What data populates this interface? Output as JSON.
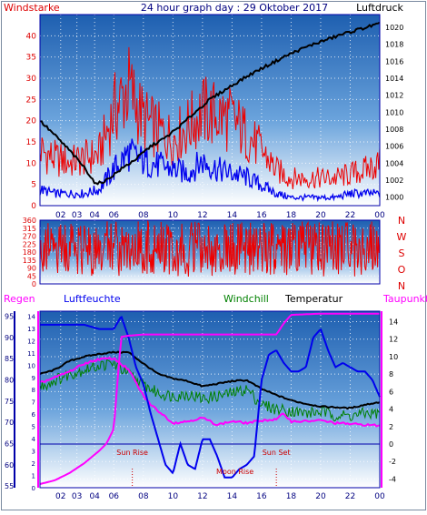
{
  "title": "24 hour graph day : 29 Oktober 2017",
  "colors": {
    "wind_avg": "#0000ee",
    "wind_gust": "#ee0000",
    "pressure": "#000000",
    "direction": "#ee0000",
    "rain": "#ff00ff",
    "humidity": "#0000ee",
    "windchill": "#008000",
    "temperature": "#000000",
    "dewpoint": "#ff00ff",
    "zero_line": "#0000aa",
    "frame": "#0000aa",
    "rain_axis": "#ff00ff",
    "sun_label": "#cc0000"
  },
  "x_ticks": [
    "02",
    "03",
    "04",
    "06",
    "08",
    "10",
    "12",
    "14",
    "16",
    "18",
    "20",
    "22",
    "00"
  ],
  "chart_data": [
    {
      "type": "line",
      "name": "wind-pressure",
      "x_range_hours": [
        1,
        24
      ],
      "left_label": "Windstarke",
      "right_label": "Luftdruck",
      "left_ylim": [
        0,
        45
      ],
      "left_ticks": [
        "0",
        "5",
        "10",
        "15",
        "20",
        "25",
        "30",
        "35",
        "40"
      ],
      "right_ylim": [
        999,
        1021.5
      ],
      "right_ticks": [
        "1000",
        "1002",
        "1004",
        "1006",
        "1008",
        "1010",
        "1012",
        "1014",
        "1016",
        "1018",
        "1020"
      ],
      "series": [
        {
          "key": "gust",
          "x": [
            1,
            2,
            3,
            4,
            5,
            6,
            7,
            8,
            9,
            10,
            11,
            12,
            13,
            14,
            15,
            16,
            17,
            18,
            19,
            20,
            21,
            22,
            23,
            24
          ],
          "y": [
            14,
            12,
            11,
            12,
            13,
            24,
            30,
            22,
            19,
            17,
            20,
            24,
            23,
            22,
            18,
            14,
            9,
            7,
            7,
            7,
            7,
            8,
            9,
            11
          ]
        },
        {
          "key": "avg",
          "x": [
            1,
            2,
            3,
            4,
            5,
            6,
            7,
            8,
            9,
            10,
            11,
            12,
            13,
            14,
            15,
            16,
            17,
            18,
            19,
            20,
            21,
            22,
            23,
            24
          ],
          "y": [
            4,
            3,
            3,
            3,
            4,
            9,
            13,
            11,
            10,
            9,
            8,
            11,
            9,
            8,
            7,
            5,
            3,
            2,
            2,
            2,
            2,
            3,
            3,
            3
          ]
        },
        {
          "key": "pressure",
          "x": [
            1,
            2,
            3,
            4,
            4.8,
            5.5,
            6.5,
            7.5,
            8.5,
            9.5,
            10.5,
            11.5,
            12.5,
            13.5,
            14.5,
            15.5,
            16.5,
            17.5,
            18.5,
            19.5,
            20.5,
            21.5,
            22.5,
            23.5,
            24
          ],
          "y": [
            1009,
            1007.3,
            1005.5,
            1003.5,
            1001.5,
            1002,
            1003.3,
            1004.5,
            1006,
            1007,
            1008.4,
            1010,
            1011.5,
            1012.6,
            1013.7,
            1014.7,
            1015.6,
            1016.5,
            1017.3,
            1018,
            1018.6,
            1019.2,
            1019.7,
            1020.2,
            1020.4
          ]
        }
      ]
    },
    {
      "type": "line",
      "name": "wind-direction",
      "x_range_hours": [
        1,
        24
      ],
      "left_ylim": [
        0,
        360
      ],
      "left_ticks": [
        "0",
        "45",
        "90",
        "135",
        "180",
        "225",
        "270",
        "315",
        "360"
      ],
      "right_labels": [
        "N",
        "W",
        "S",
        "O",
        "N"
      ],
      "series": [
        {
          "key": "direction",
          "x": [
            1,
            3,
            5,
            7,
            9,
            11,
            13,
            15,
            17,
            19,
            21,
            23,
            24
          ],
          "y": [
            280,
            150,
            250,
            310,
            120,
            260,
            200,
            330,
            140,
            280,
            210,
            170,
            260
          ]
        }
      ]
    },
    {
      "type": "line",
      "name": "temperature-humidity",
      "x_range_hours": [
        1,
        24
      ],
      "labels": {
        "regen": "Regen",
        "luftfeuchte": "Luftfeuchte",
        "windchill": "Windchill",
        "temperatur": "Temperatur",
        "taupunkt": "Taupunkt"
      },
      "humidity_ylim": [
        54.6,
        96.2
      ],
      "humidity_ticks": [
        "55",
        "60",
        "65",
        "70",
        "75",
        "80",
        "85",
        "90",
        "95"
      ],
      "rain_ylim": [
        0,
        14.4
      ],
      "rain_ticks": [
        "0",
        "1",
        "2",
        "3",
        "4",
        "5",
        "6",
        "7",
        "8",
        "9",
        "10",
        "11",
        "12",
        "13",
        "14"
      ],
      "temp_ylim": [
        -5,
        15.2
      ],
      "temp_ticks": [
        "-4",
        "-2",
        "0",
        "2",
        "4",
        "6",
        "8",
        "10",
        "12",
        "14"
      ],
      "annotations": {
        "sun_rise": "Sun Rise",
        "sun_set": "Sun Set",
        "moon_rise": "Moon Rise"
      },
      "sun_rise_hour": 7.25,
      "sun_set_hour": 17.0,
      "moon_rise_hour": 14.2,
      "series": [
        {
          "key": "humidity",
          "x": [
            1,
            2,
            3,
            4,
            5,
            6,
            6.5,
            7,
            7.5,
            8,
            8.5,
            9,
            9.5,
            10,
            10.5,
            11,
            11.5,
            12,
            12.5,
            13,
            13.5,
            14,
            14.5,
            15,
            15.5,
            16,
            16.5,
            17,
            17.5,
            18,
            18.5,
            19,
            19.5,
            20,
            20.5,
            21,
            21.5,
            22,
            22.5,
            23,
            23.5,
            24
          ],
          "y": [
            93,
            93,
            93,
            93,
            92,
            92,
            95,
            90,
            83,
            79,
            72,
            66,
            60,
            58,
            65,
            60,
            59,
            66,
            66,
            62,
            57,
            57,
            59,
            60,
            62,
            80,
            86,
            87,
            84,
            82,
            82,
            83,
            90,
            92,
            87,
            83,
            84,
            83,
            82,
            82,
            80,
            76
          ]
        },
        {
          "key": "rain",
          "x": [
            1,
            2,
            3,
            4,
            5,
            5.5,
            6,
            6.2,
            6.5,
            7,
            8,
            10,
            12,
            14,
            16,
            17,
            17.5,
            18,
            20,
            22,
            24
          ],
          "y": [
            0.3,
            0.6,
            1.2,
            2,
            3,
            3.6,
            4.8,
            8,
            12.3,
            12.4,
            12.5,
            12.5,
            12.5,
            12.5,
            12.5,
            12.5,
            13.4,
            14.1,
            14.2,
            14.2,
            14.2
          ]
        },
        {
          "key": "temperature",
          "x": [
            1,
            2,
            3,
            4,
            5,
            6,
            7,
            8,
            9,
            10,
            11,
            12,
            13,
            14,
            15,
            16,
            17,
            18,
            19,
            20,
            21,
            22,
            23,
            24
          ],
          "y": [
            8,
            8.5,
            9.5,
            10,
            10.3,
            10.5,
            10.5,
            9.2,
            8,
            7.5,
            7.2,
            6.6,
            6.9,
            7.2,
            7.3,
            6.3,
            5.6,
            5,
            4.6,
            4.3,
            4.2,
            4.1,
            4.5,
            4.8
          ]
        },
        {
          "key": "windchill",
          "x": [
            1,
            2,
            3,
            4,
            5,
            6,
            7,
            8,
            9,
            10,
            11,
            12,
            13,
            14,
            15,
            16,
            17,
            18,
            19,
            20,
            21,
            22,
            23,
            24
          ],
          "y": [
            6.5,
            7.3,
            8,
            8.5,
            9,
            9.2,
            8,
            6.8,
            5.8,
            5.5,
            5.7,
            5.2,
            5.5,
            5.8,
            6.3,
            4.5,
            4,
            3.8,
            3.5,
            3.7,
            3.3,
            3.2,
            3.5,
            3.5
          ]
        },
        {
          "key": "dewpoint",
          "x": [
            1,
            2,
            3,
            4,
            5,
            6,
            7,
            7.5,
            8,
            8.5,
            9,
            10,
            11,
            12,
            13,
            14,
            15,
            16,
            17,
            17.5,
            18,
            19,
            20,
            21,
            22,
            23,
            24
          ],
          "y": [
            7,
            7.6,
            8.3,
            9.2,
            9.7,
            9.8,
            8.5,
            7,
            5.5,
            4.5,
            3.8,
            2.4,
            2.6,
            3,
            2.2,
            2.6,
            2.4,
            2.7,
            2.8,
            3.5,
            2.6,
            2.6,
            2.7,
            2.4,
            2.3,
            2.2,
            2.1
          ]
        }
      ]
    }
  ]
}
